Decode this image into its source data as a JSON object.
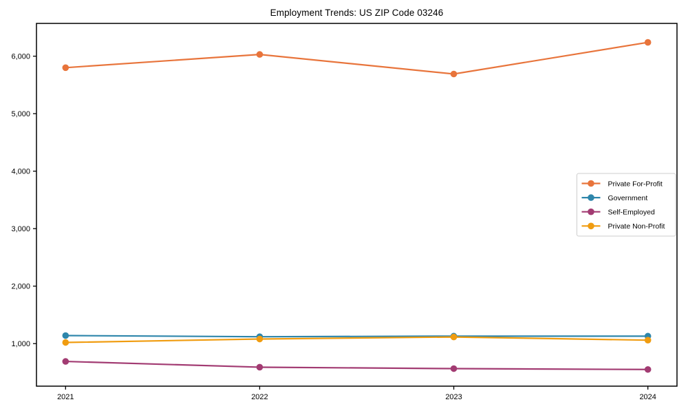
{
  "chart_data": {
    "type": "line",
    "title": "Employment Trends: US ZIP Code 03246",
    "x_categories": [
      "2021",
      "2022",
      "2023",
      "2024"
    ],
    "series": [
      {
        "name": "Private For-Profit",
        "color": "#E8743B",
        "values": [
          5800,
          6030,
          5690,
          6240
        ]
      },
      {
        "name": "Government",
        "color": "#2E86AB",
        "values": [
          1140,
          1120,
          1130,
          1130
        ]
      },
      {
        "name": "Self-Employed",
        "color": "#A23B72",
        "values": [
          690,
          590,
          565,
          550
        ]
      },
      {
        "name": "Private Non-Profit",
        "color": "#F09C10",
        "values": [
          1020,
          1080,
          1115,
          1060
        ]
      }
    ],
    "ylim": [
      260,
      6570
    ],
    "yticks": [
      1000,
      2000,
      3000,
      4000,
      5000,
      6000
    ],
    "ytick_labels": [
      "1,000",
      "2,000",
      "3,000",
      "4,000",
      "5,000",
      "6,000"
    ],
    "grid": false,
    "marker": "circle",
    "legend_position": "middle-right",
    "axis_color": "#000000",
    "background": "#ffffff"
  }
}
